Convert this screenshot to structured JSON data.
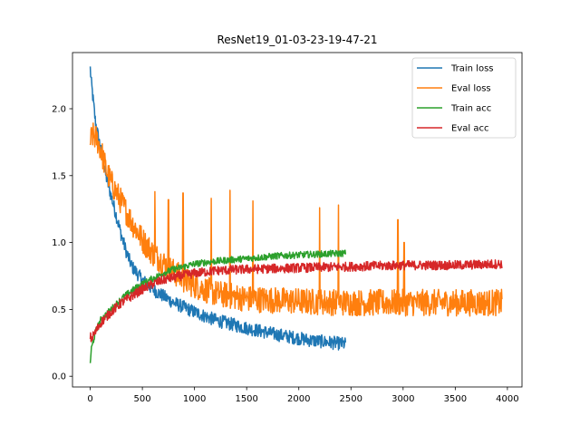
{
  "chart_data": {
    "type": "line",
    "title": "ResNet19_01-03-23-19-47-21",
    "xlabel": "",
    "ylabel": "",
    "xlim": [
      -170,
      4140
    ],
    "ylim": [
      -0.08,
      2.42
    ],
    "xticks": [
      0,
      500,
      1000,
      1500,
      2000,
      2500,
      3000,
      3500,
      4000
    ],
    "xtick_labels": [
      "0",
      "500",
      "1000",
      "1500",
      "2000",
      "2500",
      "3000",
      "3500",
      "4000"
    ],
    "yticks": [
      0.0,
      0.5,
      1.0,
      1.5,
      2.0
    ],
    "ytick_labels": [
      "0.0",
      "0.5",
      "1.0",
      "1.5",
      "2.0"
    ],
    "grid": false,
    "legend_position": "top-right",
    "series": [
      {
        "name": "Train loss",
        "color": "#1f77b4",
        "x_end": 2450,
        "noise": 0.05,
        "spikes": [],
        "x": [
          0,
          10,
          50,
          100,
          150,
          200,
          250,
          300,
          350,
          400,
          500,
          600,
          700,
          800,
          1000,
          1200,
          1500,
          1800,
          2100,
          2450
        ],
        "y": [
          2.3,
          2.2,
          1.9,
          1.7,
          1.5,
          1.35,
          1.2,
          1.05,
          0.92,
          0.82,
          0.72,
          0.65,
          0.6,
          0.55,
          0.48,
          0.42,
          0.36,
          0.31,
          0.27,
          0.24
        ]
      },
      {
        "name": "Eval loss",
        "color": "#ff7f0e",
        "x_end": 3950,
        "noise": 0.1,
        "spikes": [
          [
            620,
            1.38
          ],
          [
            750,
            1.32
          ],
          [
            890,
            1.37
          ],
          [
            1160,
            1.33
          ],
          [
            1340,
            1.39
          ],
          [
            1560,
            1.31
          ],
          [
            2200,
            1.26
          ],
          [
            2380,
            1.28
          ],
          [
            2950,
            1.17
          ],
          [
            3010,
            1.0
          ]
        ],
        "x": [
          0,
          20,
          60,
          100,
          150,
          200,
          300,
          400,
          500,
          600,
          700,
          800,
          900,
          1000,
          1200,
          1500,
          2000,
          2500,
          3000,
          3500,
          3950
        ],
        "y": [
          1.75,
          1.8,
          1.78,
          1.7,
          1.55,
          1.45,
          1.3,
          1.15,
          1.02,
          0.92,
          0.85,
          0.78,
          0.72,
          0.68,
          0.62,
          0.58,
          0.56,
          0.55,
          0.55,
          0.55,
          0.55
        ]
      },
      {
        "name": "Train acc",
        "color": "#2ca02c",
        "x_end": 2450,
        "noise": 0.025,
        "spikes": [],
        "x": [
          0,
          10,
          50,
          100,
          200,
          300,
          400,
          500,
          600,
          700,
          800,
          1000,
          1200,
          1500,
          1800,
          2100,
          2450
        ],
        "y": [
          0.1,
          0.2,
          0.33,
          0.42,
          0.5,
          0.58,
          0.64,
          0.69,
          0.73,
          0.77,
          0.8,
          0.84,
          0.86,
          0.88,
          0.9,
          0.91,
          0.92
        ]
      },
      {
        "name": "Eval acc",
        "color": "#d62728",
        "x_end": 3950,
        "noise": 0.035,
        "spikes": [],
        "x": [
          0,
          10,
          50,
          100,
          200,
          300,
          400,
          500,
          600,
          700,
          800,
          1000,
          1200,
          1500,
          2000,
          2500,
          3000,
          3500,
          3950
        ],
        "y": [
          0.3,
          0.28,
          0.33,
          0.4,
          0.48,
          0.55,
          0.6,
          0.65,
          0.69,
          0.72,
          0.74,
          0.77,
          0.79,
          0.8,
          0.81,
          0.82,
          0.83,
          0.83,
          0.84
        ]
      }
    ]
  }
}
